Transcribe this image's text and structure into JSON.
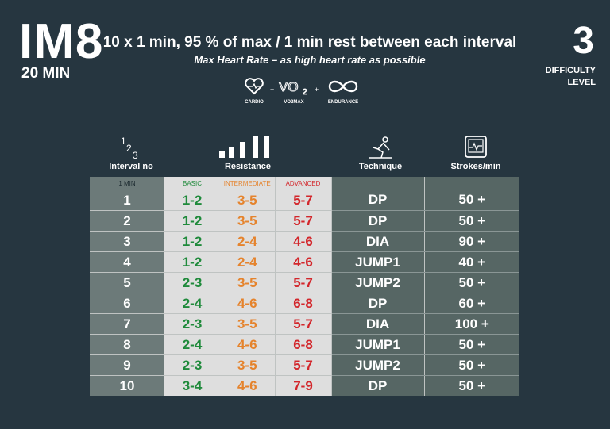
{
  "header": {
    "code": "IM8",
    "duration": "20 MIN",
    "title": "10 x 1 min, 95 % of max / 1 min rest between each interval",
    "subtitle": "Max Heart Rate – as high heart rate as possible",
    "difficulty_value": "3",
    "difficulty_label_1": "DIFFICULTY",
    "difficulty_label_2": "LEVEL"
  },
  "focus_icons": [
    {
      "icon": "heart-icon",
      "label": "CARDIO"
    },
    {
      "icon": "vo2-icon",
      "label": "VO2MAX"
    },
    {
      "icon": "infinity-icon",
      "label": "ENDURANCE"
    }
  ],
  "column_headers": {
    "interval": "Interval no",
    "interval_icon_text": "123",
    "resistance": "Resistance",
    "technique": "Technique",
    "strokes": "Strokes/min"
  },
  "table": {
    "subheaders": [
      "1 MIN",
      "BASIC",
      "INTERMEDIATE",
      "ADVANCED"
    ],
    "rows": [
      [
        "1",
        "1-2",
        "3-5",
        "5-7",
        "DP",
        "50 +"
      ],
      [
        "2",
        "1-2",
        "3-5",
        "5-7",
        "DP",
        "50 +"
      ],
      [
        "3",
        "1-2",
        "2-4",
        "4-6",
        "DIA",
        "90 +"
      ],
      [
        "4",
        "1-2",
        "2-4",
        "4-6",
        "JUMP1",
        "40 +"
      ],
      [
        "5",
        "2-3",
        "3-5",
        "5-7",
        "JUMP2",
        "50 +"
      ],
      [
        "6",
        "2-4",
        "4-6",
        "6-8",
        "DP",
        "60 +"
      ],
      [
        "7",
        "2-3",
        "3-5",
        "5-7",
        "DIA",
        "100 +"
      ],
      [
        "8",
        "2-4",
        "4-6",
        "6-8",
        "JUMP1",
        "50 +"
      ],
      [
        "9",
        "2-3",
        "3-5",
        "5-7",
        "JUMP2",
        "50 +"
      ],
      [
        "10",
        "3-4",
        "4-6",
        "7-9",
        "DP",
        "50 +"
      ]
    ]
  },
  "colors": {
    "background": "#263640",
    "basic": "#1f8a3b",
    "intermediate": "#e5832c",
    "advanced": "#d3262b"
  }
}
